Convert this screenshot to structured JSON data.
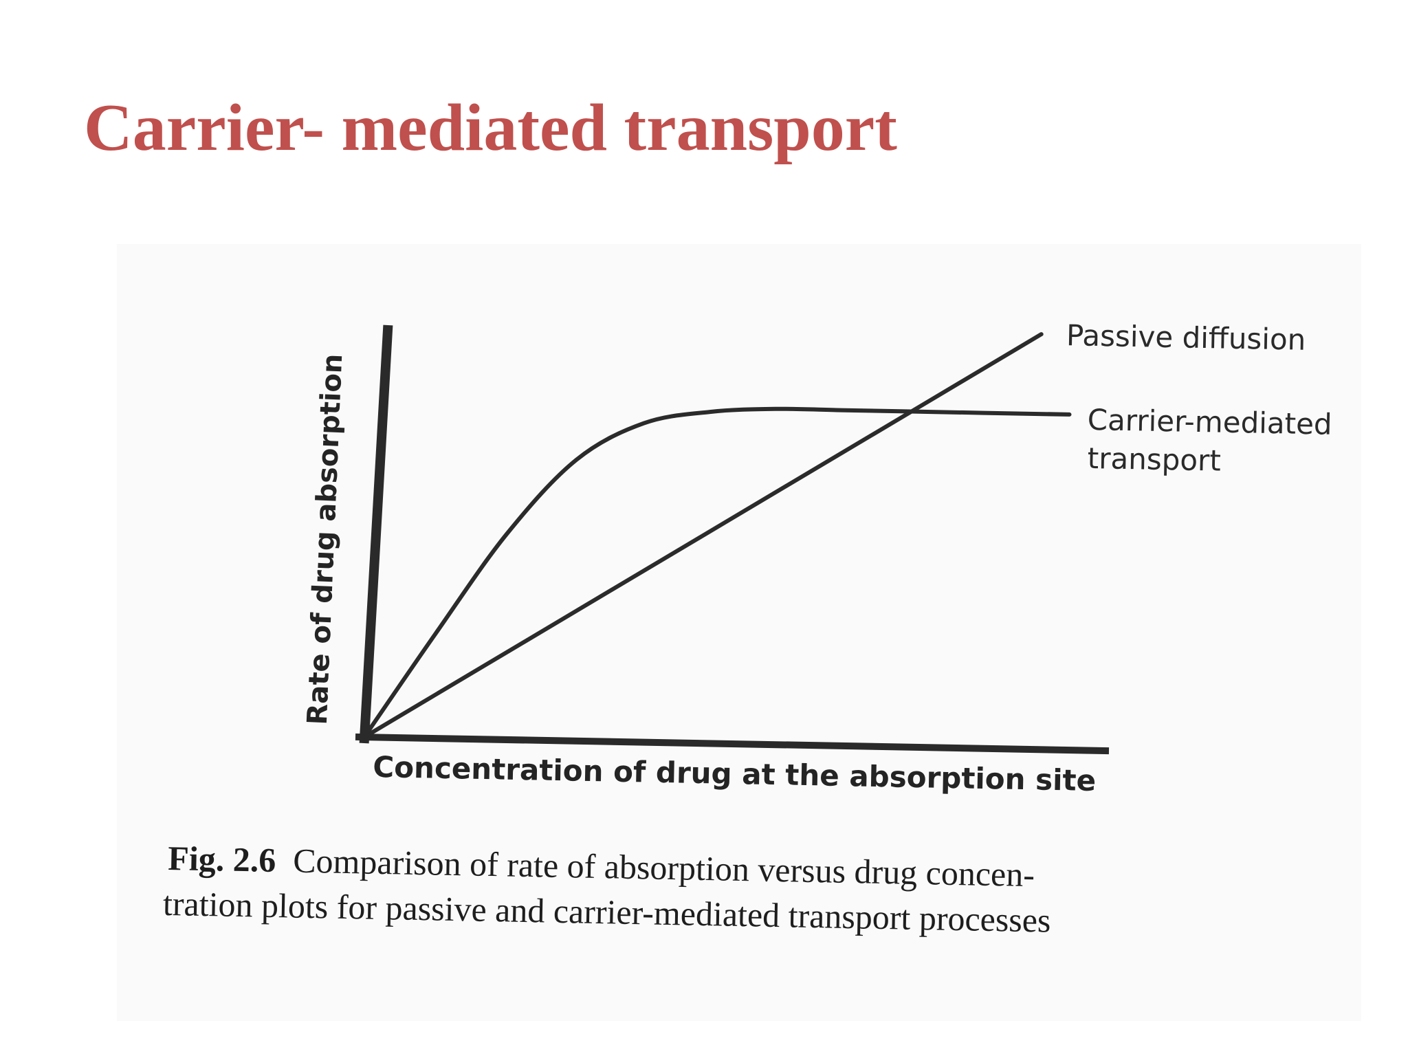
{
  "slide": {
    "title": "Carrier- mediated transport",
    "title_color": "#c0504d"
  },
  "chart_data": {
    "type": "line",
    "title": "",
    "xlabel": "Concentration of drug at the absorption site",
    "ylabel": "Rate of drug absorption",
    "xlim": [
      0,
      10
    ],
    "ylim": [
      0,
      10
    ],
    "grid": false,
    "legend": "direct labels at line ends",
    "series": [
      {
        "name": "Passive diffusion",
        "x": [
          0,
          10
        ],
        "y": [
          0,
          9.9
        ],
        "color": "#2b2b2b"
      },
      {
        "name": "Carrier-mediated transport",
        "name_lines": [
          "Carrier-mediated",
          "transport"
        ],
        "x": [
          0,
          1,
          2,
          3,
          4,
          5,
          6,
          7,
          8,
          10.5
        ],
        "y": [
          0,
          2.5,
          4.9,
          6.7,
          7.6,
          7.9,
          8.0,
          8.0,
          8.0,
          8.0
        ],
        "color": "#2b2b2b"
      }
    ]
  },
  "caption": {
    "fig_label": "Fig. 2.6",
    "line1": "Comparison of rate of absorption versus drug concen-",
    "line2": "tration plots for passive and carrier-mediated transport processes"
  }
}
